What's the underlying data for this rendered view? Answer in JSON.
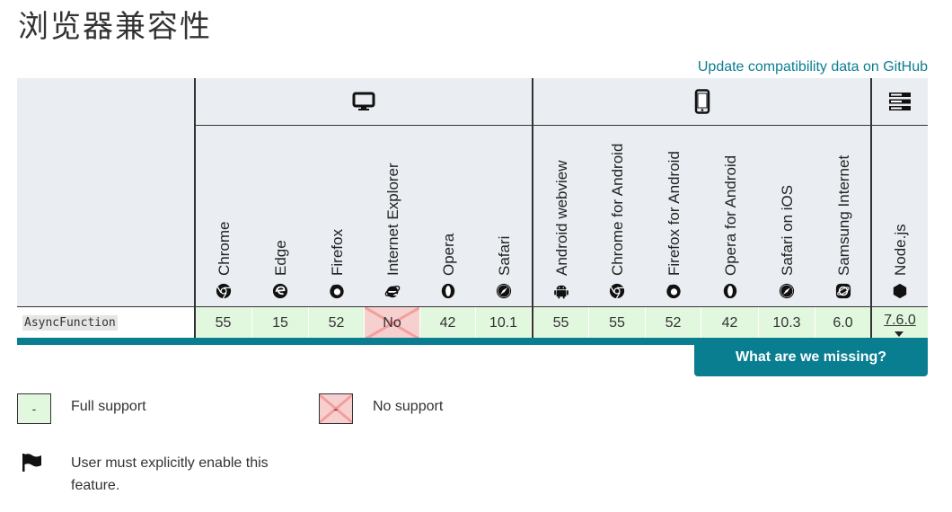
{
  "page": {
    "title": "浏览器兼容性"
  },
  "links": {
    "github": "Update compatibility data on GitHub"
  },
  "platforms": [
    {
      "name": "desktop",
      "icon": "desktop-icon"
    },
    {
      "name": "mobile",
      "icon": "mobile-icon"
    },
    {
      "name": "server",
      "icon": "server-icon"
    }
  ],
  "browsers": [
    {
      "name": "Chrome",
      "icon": "chrome-icon",
      "value": "55",
      "support": "full"
    },
    {
      "name": "Edge",
      "icon": "edge-icon",
      "value": "15",
      "support": "full"
    },
    {
      "name": "Firefox",
      "icon": "firefox-icon",
      "value": "52",
      "support": "full"
    },
    {
      "name": "Internet Explorer",
      "icon": "internet-explorer-icon",
      "value": "No",
      "support": "none"
    },
    {
      "name": "Opera",
      "icon": "opera-icon",
      "value": "42",
      "support": "full"
    },
    {
      "name": "Safari",
      "icon": "safari-icon",
      "value": "10.1",
      "support": "full"
    },
    {
      "name": "Android webview",
      "icon": "android-icon",
      "value": "55",
      "support": "full"
    },
    {
      "name": "Chrome for Android",
      "icon": "chrome-icon",
      "value": "55",
      "support": "full"
    },
    {
      "name": "Firefox for Android",
      "icon": "firefox-icon",
      "value": "52",
      "support": "full"
    },
    {
      "name": "Opera for Android",
      "icon": "opera-icon",
      "value": "42",
      "support": "full"
    },
    {
      "name": "Safari on iOS",
      "icon": "safari-icon",
      "value": "10.3",
      "support": "full"
    },
    {
      "name": "Samsung Internet",
      "icon": "samsung-internet-icon",
      "value": "6.0",
      "support": "full"
    },
    {
      "name": "Node.js",
      "icon": "nodejs-icon",
      "value": "7.6.0",
      "support": "full"
    }
  ],
  "feature": {
    "name": "AsyncFunction"
  },
  "missing_button": "What are we missing?",
  "legend": {
    "full_support": "Full support",
    "no_support": "No support",
    "flag": "User must explicitly enable this feature.",
    "box_symbol": "-"
  },
  "colors": {
    "accent": "#0a7e91",
    "full_support_bg": "#e2f8de",
    "no_support_bg": "#f6cfcf",
    "header_bg": "#eaeef2"
  }
}
